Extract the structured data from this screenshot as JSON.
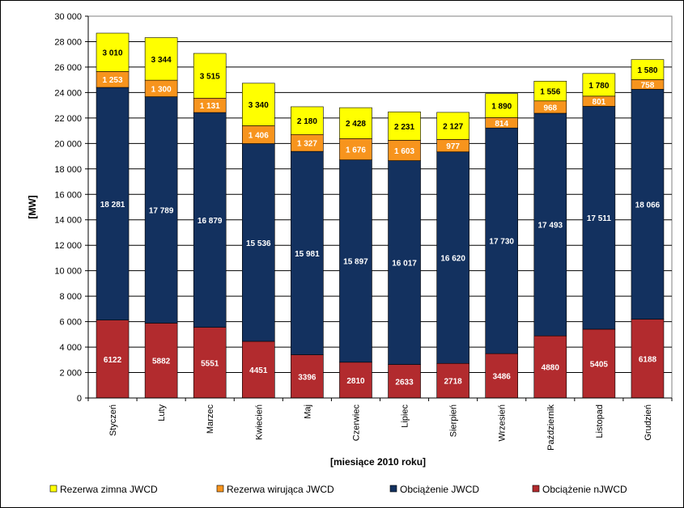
{
  "chart_data": {
    "type": "bar",
    "stacked": true,
    "title": "",
    "xlabel": "[miesiące 2010 roku]",
    "ylabel": "[MW]",
    "ylim": [
      0,
      30000
    ],
    "y_ticks": [
      "0",
      "2 000",
      "4 000",
      "6 000",
      "8 000",
      "10 000",
      "12 000",
      "14 000",
      "16 000",
      "18 000",
      "20 000",
      "22 000",
      "24 000",
      "26 000",
      "28 000",
      "30 000"
    ],
    "grid": true,
    "legend_position": "bottom",
    "categories": [
      "Styczeń",
      "Luty",
      "Marzec",
      "Kwiecień",
      "Maj",
      "Czerwiec",
      "Lipiec",
      "Sierpień",
      "Wrzesień",
      "Październik",
      "Listopad",
      "Grudzień"
    ],
    "series": [
      {
        "name": "Obciążenie nJWCD",
        "color": "#B22B2E",
        "label_color": "#ffffff",
        "values": [
          6122,
          5882,
          5551,
          4451,
          3396,
          2810,
          2633,
          2718,
          3486,
          4880,
          5405,
          6188
        ],
        "labels": [
          "6122",
          "5882",
          "5551",
          "4451",
          "3396",
          "2810",
          "2633",
          "2718",
          "3486",
          "4880",
          "5405",
          "6188"
        ]
      },
      {
        "name": "Obciążenie JWCD",
        "color": "#13315F",
        "label_color": "#ffffff",
        "values": [
          18281,
          17789,
          16879,
          15536,
          15981,
          15897,
          16017,
          16620,
          17730,
          17493,
          17511,
          18066
        ],
        "labels": [
          "18 281",
          "17 789",
          "16 879",
          "15 536",
          "15 981",
          "15 897",
          "16 017",
          "16 620",
          "17 730",
          "17 493",
          "17 511",
          "18 066"
        ]
      },
      {
        "name": "Rezerwa wirująca JWCD",
        "color": "#F7941D",
        "label_color": "#ffffff",
        "values": [
          1253,
          1300,
          1131,
          1406,
          1327,
          1676,
          1603,
          977,
          814,
          968,
          801,
          758
        ],
        "labels": [
          "1 253",
          "1 300",
          "1 131",
          "1 406",
          "1 327",
          "1 676",
          "1 603",
          "977",
          "814",
          "968",
          "801",
          "758"
        ]
      },
      {
        "name": "Rezerwa zimna JWCD",
        "color": "#FFFF00",
        "label_color": "#000000",
        "values": [
          3010,
          3344,
          3515,
          3340,
          2180,
          2428,
          2231,
          2127,
          1890,
          1556,
          1780,
          1580
        ],
        "labels": [
          "3 010",
          "3 344",
          "3 515",
          "3 340",
          "2 180",
          "2 428",
          "2 231",
          "2 127",
          "1 890",
          "1 556",
          "1 780",
          "1 580"
        ]
      }
    ],
    "legend_order": [
      3,
      2,
      1,
      0
    ]
  }
}
